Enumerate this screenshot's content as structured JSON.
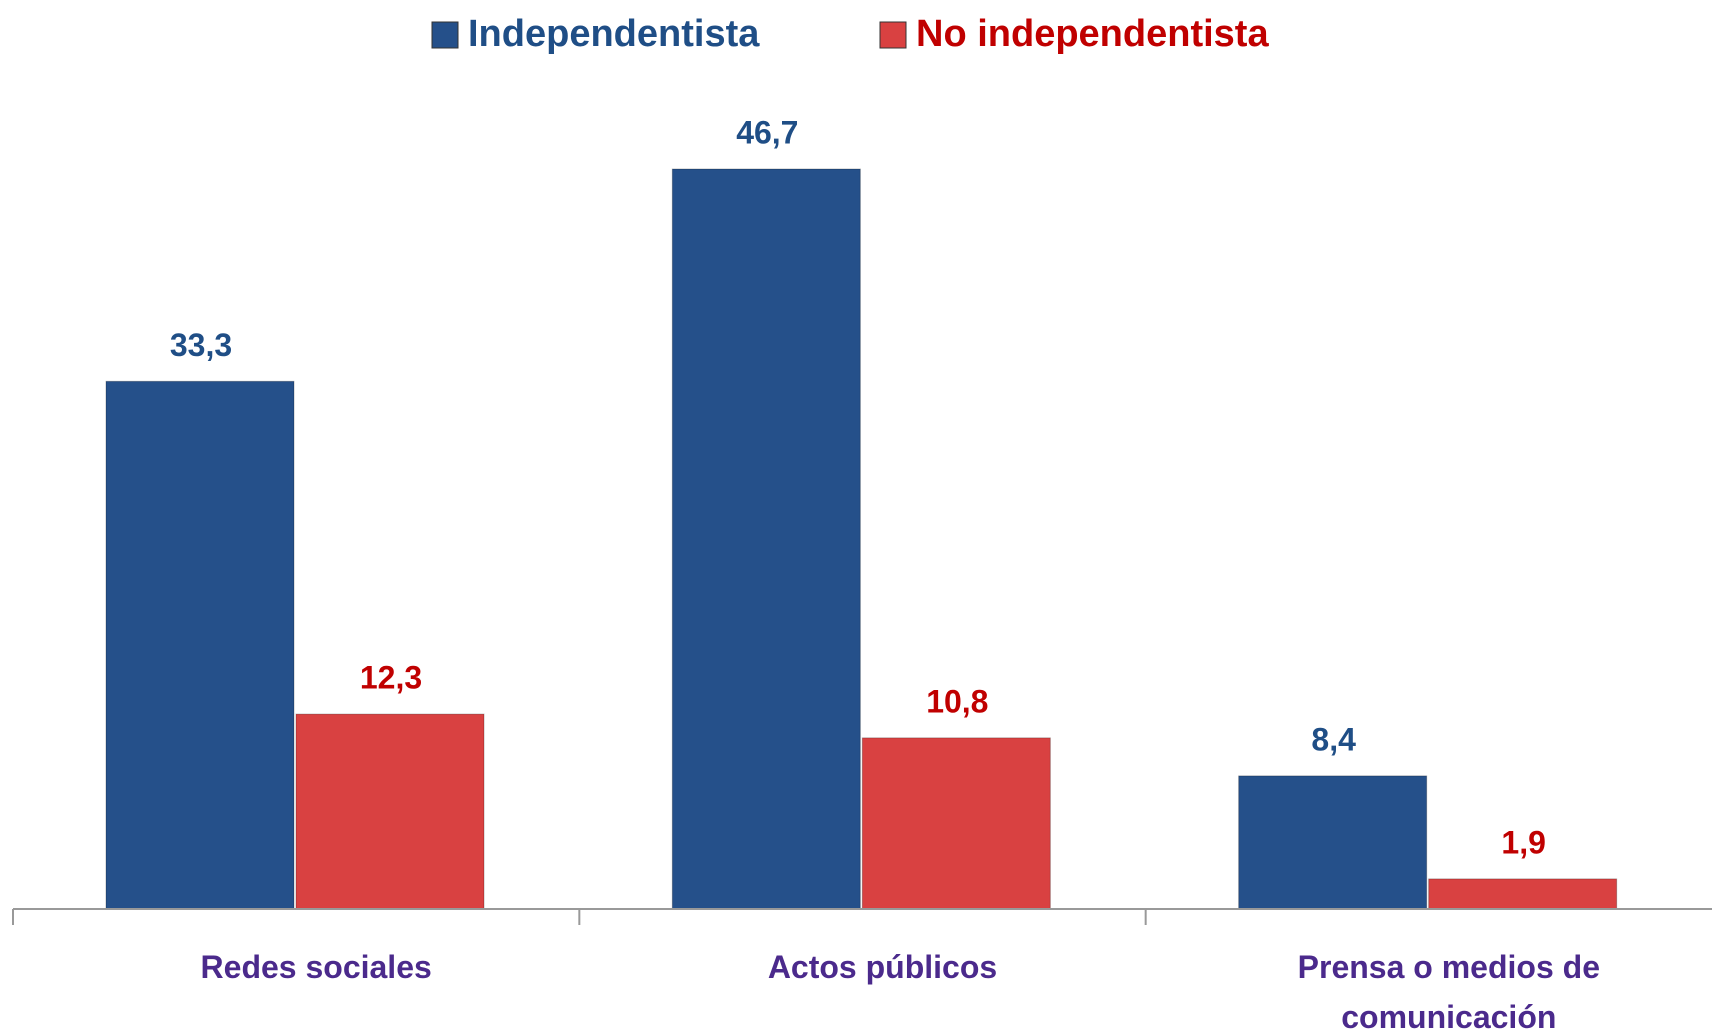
{
  "chart_data": {
    "type": "bar",
    "categories": [
      "Redes sociales",
      "Actos públicos",
      "Prensa o medios de comunicación"
    ],
    "series": [
      {
        "name": "Independentista",
        "color": "#25508a",
        "label_color": "#1f4e86",
        "values": [
          33.3,
          46.7,
          8.4
        ],
        "value_labels": [
          "33,3",
          "46,7",
          "8,4"
        ]
      },
      {
        "name": "No independentista",
        "color": "#d94141",
        "label_color": "#c00000",
        "values": [
          12.3,
          10.8,
          1.9
        ],
        "value_labels": [
          "12,3",
          "10,8",
          "1,9"
        ]
      }
    ],
    "legend": "top"
  }
}
